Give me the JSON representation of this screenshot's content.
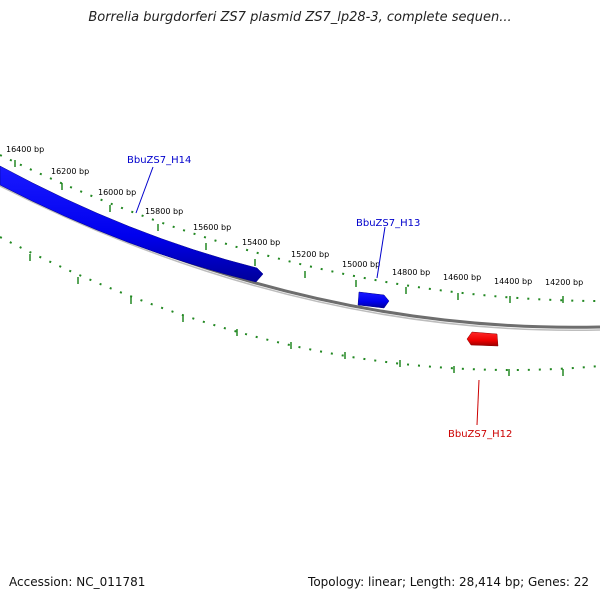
{
  "title": "Borrelia burgdorferi ZS7 plasmid ZS7_lp28-3, complete sequen...",
  "footer": {
    "accession": "Accession: NC_011781",
    "summary": "Topology: linear; Length: 28,414 bp; Genes: 22"
  },
  "tick_labels": [
    "16400 bp",
    "16200 bp",
    "16000 bp",
    "15800 bp",
    "15600 bp",
    "15400 bp",
    "15200 bp",
    "15000 bp",
    "14800 bp",
    "14600 bp",
    "14400 bp",
    "14200 bp"
  ],
  "genes": [
    {
      "name": "BbuZS7_H14",
      "strand": "forward",
      "color": "#0000dd"
    },
    {
      "name": "BbuZS7_H13",
      "strand": "forward",
      "color": "#0000dd"
    },
    {
      "name": "BbuZS7_H12",
      "strand": "reverse",
      "color": "#dd0000"
    }
  ],
  "colors": {
    "backbone": "#7a7a7a",
    "ticks": "#228822",
    "forward": "#0000ff",
    "reverse": "#ff0000"
  }
}
